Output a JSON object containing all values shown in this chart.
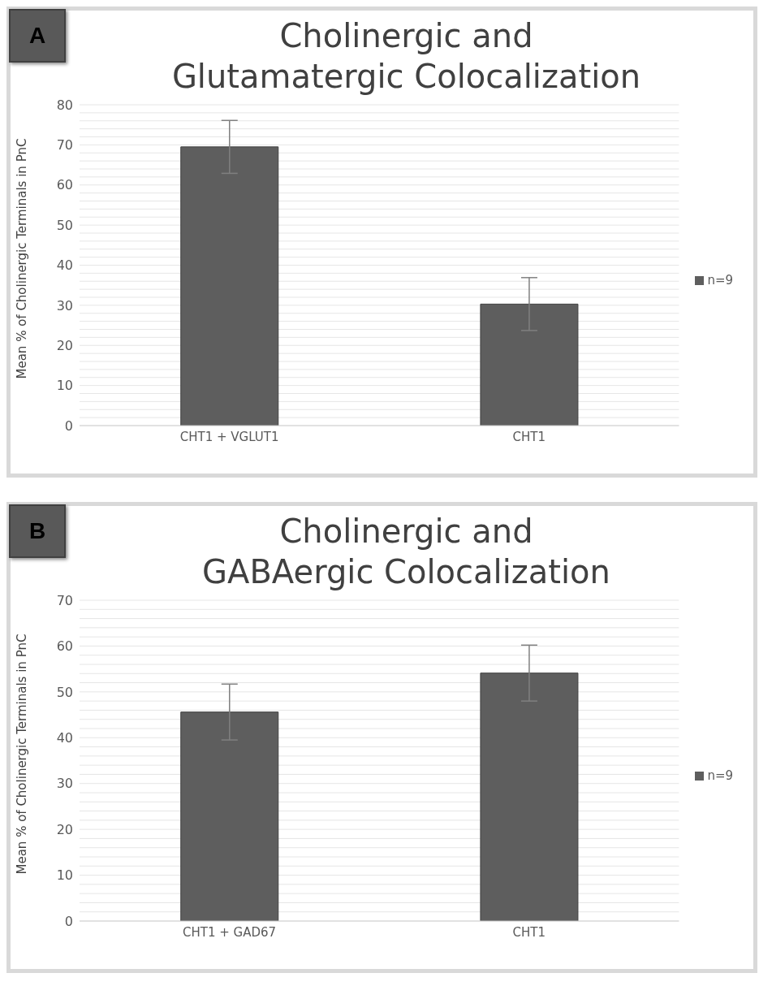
{
  "chart_data": [
    {
      "type": "bar",
      "title": "Cholinergic and\nGlutamatergic Colocalization",
      "ylabel": "Mean % of Cholinergic Terminals in PnC",
      "categories": [
        "CHT1 + VGLUT1",
        "CHT1"
      ],
      "series": [
        {
          "name": "n=9",
          "color": "#5e5e5e",
          "values": [
            69.5,
            30.3
          ],
          "errors": [
            6.6,
            6.6
          ]
        }
      ],
      "ylim": [
        0,
        80
      ],
      "yticks": [
        0,
        {
          "value": 2,
          "label": null
        },
        {
          "value": 4,
          "label": null
        },
        {
          "value": 6,
          "label": null
        },
        {
          "value": 8,
          "label": null
        },
        10,
        {
          "value": 12,
          "label": null
        },
        {
          "value": 14,
          "label": null
        },
        {
          "value": 16,
          "label": null
        },
        {
          "value": 18,
          "label": null
        },
        20,
        {
          "value": 22,
          "label": null
        },
        {
          "value": 24,
          "label": null
        },
        {
          "value": 26,
          "label": null
        },
        {
          "value": 28,
          "label": null
        },
        30,
        {
          "value": 32,
          "label": null
        },
        {
          "value": 34,
          "label": null
        },
        {
          "value": 36,
          "label": null
        },
        {
          "value": 38,
          "label": null
        },
        40,
        {
          "value": 42,
          "label": null
        },
        {
          "value": 44,
          "label": null
        },
        {
          "value": 46,
          "label": null
        },
        {
          "value": 48,
          "label": null
        },
        50,
        {
          "value": 52,
          "label": null
        },
        {
          "value": 54,
          "label": null
        },
        {
          "value": 56,
          "label": null
        },
        {
          "value": 58,
          "label": null
        },
        60,
        {
          "value": 62,
          "label": null
        },
        {
          "value": 64,
          "label": null
        },
        {
          "value": 66,
          "label": null
        },
        {
          "value": 68,
          "label": null
        },
        70,
        {
          "value": 72,
          "label": null
        },
        {
          "value": 74,
          "label": null
        },
        {
          "value": 76,
          "label": null
        },
        {
          "value": 78,
          "label": null
        },
        80
      ],
      "grid": "y",
      "legend": "right",
      "annotations": [
        "A"
      ]
    },
    {
      "type": "bar",
      "title": "Cholinergic and\nGABAergic Colocalization",
      "ylabel": "Mean % of Cholinergic Terminals in PnC",
      "categories": [
        "CHT1 + GAD67",
        "CHT1"
      ],
      "series": [
        {
          "name": "n=9",
          "color": "#5e5e5e",
          "values": [
            45.6,
            54.1
          ],
          "errors": [
            6.1,
            6.1
          ]
        }
      ],
      "ylim": [
        0,
        70
      ],
      "yticks": [
        0,
        {
          "value": 2,
          "label": null
        },
        {
          "value": 4,
          "label": null
        },
        {
          "value": 6,
          "label": null
        },
        {
          "value": 8,
          "label": null
        },
        10,
        {
          "value": 12,
          "label": null
        },
        {
          "value": 14,
          "label": null
        },
        {
          "value": 16,
          "label": null
        },
        {
          "value": 18,
          "label": null
        },
        20,
        {
          "value": 22,
          "label": null
        },
        {
          "value": 24,
          "label": null
        },
        {
          "value": 26,
          "label": null
        },
        {
          "value": 28,
          "label": null
        },
        30,
        {
          "value": 32,
          "label": null
        },
        {
          "value": 34,
          "label": null
        },
        {
          "value": 36,
          "label": null
        },
        {
          "value": 38,
          "label": null
        },
        40,
        {
          "value": 42,
          "label": null
        },
        {
          "value": 44,
          "label": null
        },
        {
          "value": 46,
          "label": null
        },
        {
          "value": 48,
          "label": null
        },
        50,
        {
          "value": 52,
          "label": null
        },
        {
          "value": 54,
          "label": null
        },
        {
          "value": 56,
          "label": null
        },
        {
          "value": 58,
          "label": null
        },
        60,
        {
          "value": 62,
          "label": null
        },
        {
          "value": 64,
          "label": null
        },
        {
          "value": 66,
          "label": null
        },
        {
          "value": 68,
          "label": null
        },
        70
      ],
      "grid": "y",
      "legend": "right",
      "annotations": [
        "B"
      ]
    }
  ]
}
